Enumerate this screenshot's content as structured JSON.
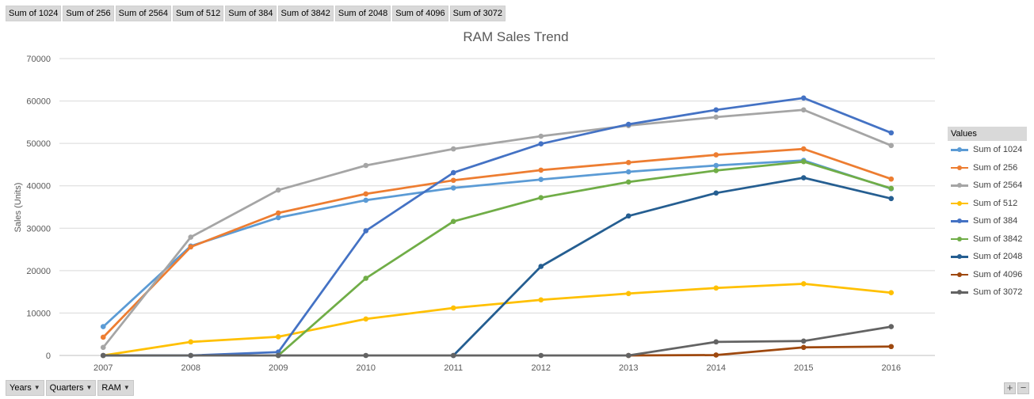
{
  "field_buttons": [
    "Sum of 1024",
    "Sum of 256",
    "Sum of 2564",
    "Sum of 512",
    "Sum of 384",
    "Sum of 3842",
    "Sum of 2048",
    "Sum of 4096",
    "Sum of 3072"
  ],
  "axis_buttons": [
    "Years",
    "Quarters",
    "RAM"
  ],
  "legend_title": "Values",
  "zoom": {
    "plus": "+",
    "minus": "−"
  },
  "chart_data": {
    "type": "line",
    "title": "RAM Sales Trend",
    "xlabel": "",
    "ylabel": "Sales (Units)",
    "ylim": [
      0,
      70000
    ],
    "yticks": [
      "0",
      "10000",
      "20000",
      "30000",
      "40000",
      "50000",
      "60000",
      "70000"
    ],
    "categories": [
      "2007",
      "2008",
      "2009",
      "2010",
      "2011",
      "2012",
      "2013",
      "2014",
      "2015",
      "2016"
    ],
    "grid": true,
    "legend_position": "right",
    "series": [
      {
        "name": "Sum of 1024",
        "color": "#5b9bd5",
        "values": [
          6800,
          25800,
          32500,
          36600,
          39500,
          41500,
          43300,
          44800,
          46000,
          39300
        ]
      },
      {
        "name": "Sum of 256",
        "color": "#ed7d31",
        "values": [
          4300,
          25600,
          33600,
          38100,
          41300,
          43700,
          45500,
          47300,
          48700,
          41600
        ]
      },
      {
        "name": "Sum of 2564",
        "color": "#a5a5a5",
        "values": [
          1900,
          27900,
          39000,
          44800,
          48700,
          51700,
          54200,
          56200,
          57900,
          49500
        ]
      },
      {
        "name": "Sum of 512",
        "color": "#ffc000",
        "values": [
          0,
          3200,
          4400,
          8600,
          11200,
          13100,
          14600,
          15900,
          16900,
          14800
        ]
      },
      {
        "name": "Sum of 384",
        "color": "#4472c4",
        "values": [
          0,
          0,
          800,
          29400,
          43100,
          49900,
          54500,
          57900,
          60700,
          52500
        ]
      },
      {
        "name": "Sum of 3842",
        "color": "#70ad47",
        "values": [
          null,
          null,
          0,
          18200,
          31600,
          37200,
          40900,
          43600,
          45700,
          39400
        ]
      },
      {
        "name": "Sum of 2048",
        "color": "#255e91",
        "values": [
          null,
          null,
          null,
          null,
          0,
          21000,
          32900,
          38300,
          41900,
          37000
        ]
      },
      {
        "name": "Sum of 4096",
        "color": "#9e480e",
        "values": [
          null,
          null,
          null,
          null,
          null,
          null,
          0,
          100,
          1900,
          2100
        ]
      },
      {
        "name": "Sum of 3072",
        "color": "#636363",
        "values": [
          0,
          0,
          0,
          0,
          0,
          0,
          0,
          3200,
          3400,
          6800
        ]
      }
    ]
  }
}
